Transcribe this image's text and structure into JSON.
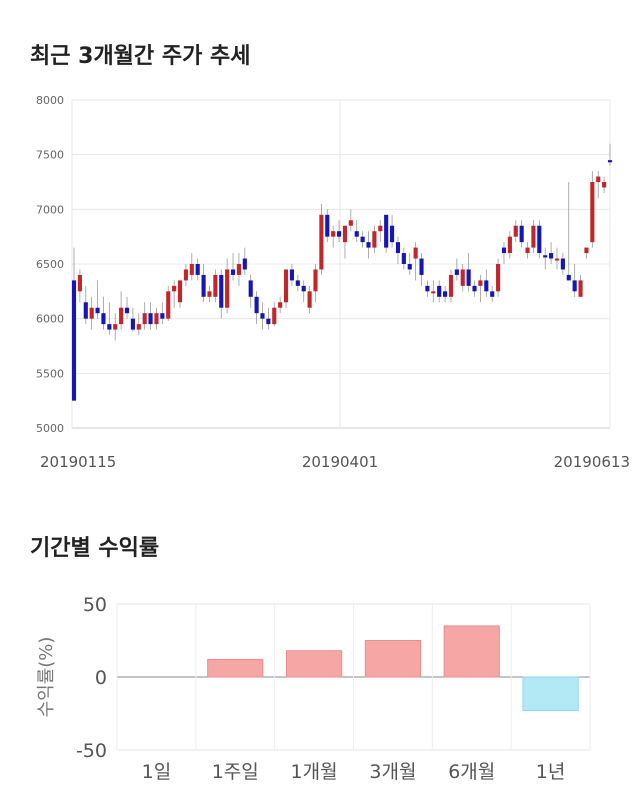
{
  "sections": {
    "price_title": "최근 3개월간 주가 추세",
    "returns_title": "기간별 수익률"
  },
  "colors": {
    "up": "#c0262a",
    "down": "#1616b4",
    "positive_bar": "#f7a6a6",
    "negative_bar": "#b3e9f5",
    "grid": "#e8e8e8"
  },
  "chart_data": [
    {
      "type": "candlestick",
      "title": "최근 3개월간 주가 추세",
      "ylim": [
        5000,
        8000
      ],
      "yticks": [
        5000,
        5500,
        6000,
        6500,
        7000,
        7500,
        8000
      ],
      "x_tick_labels": [
        "20190115",
        "20190401",
        "20190613"
      ],
      "grid": true,
      "series": [
        {
          "o": 6350,
          "h": 6650,
          "l": 5250,
          "c": 5250
        },
        {
          "o": 6250,
          "h": 6450,
          "l": 6150,
          "c": 6400
        },
        {
          "o": 6150,
          "h": 6300,
          "l": 5950,
          "c": 6000
        },
        {
          "o": 6000,
          "h": 6200,
          "l": 5900,
          "c": 6100
        },
        {
          "o": 6100,
          "h": 6350,
          "l": 6000,
          "c": 6050
        },
        {
          "o": 6050,
          "h": 6200,
          "l": 5900,
          "c": 5950
        },
        {
          "o": 5950,
          "h": 6150,
          "l": 5850,
          "c": 5900
        },
        {
          "o": 5900,
          "h": 6050,
          "l": 5800,
          "c": 5950
        },
        {
          "o": 5950,
          "h": 6250,
          "l": 5900,
          "c": 6100
        },
        {
          "o": 6100,
          "h": 6200,
          "l": 6000,
          "c": 6050
        },
        {
          "o": 6000,
          "h": 6100,
          "l": 5880,
          "c": 5900
        },
        {
          "o": 5900,
          "h": 6050,
          "l": 5850,
          "c": 5950
        },
        {
          "o": 5950,
          "h": 6150,
          "l": 5900,
          "c": 6050
        },
        {
          "o": 6050,
          "h": 6150,
          "l": 5900,
          "c": 5950
        },
        {
          "o": 5950,
          "h": 6100,
          "l": 5900,
          "c": 6050
        },
        {
          "o": 6050,
          "h": 6150,
          "l": 5950,
          "c": 6000
        },
        {
          "o": 6000,
          "h": 6300,
          "l": 5980,
          "c": 6250
        },
        {
          "o": 6250,
          "h": 6350,
          "l": 6100,
          "c": 6300
        },
        {
          "o": 6150,
          "h": 6350,
          "l": 6100,
          "c": 6350
        },
        {
          "o": 6350,
          "h": 6500,
          "l": 6300,
          "c": 6450
        },
        {
          "o": 6400,
          "h": 6600,
          "l": 6350,
          "c": 6500
        },
        {
          "o": 6500,
          "h": 6550,
          "l": 6350,
          "c": 6400
        },
        {
          "o": 6400,
          "h": 6500,
          "l": 6150,
          "c": 6200
        },
        {
          "o": 6200,
          "h": 6300,
          "l": 6150,
          "c": 6250
        },
        {
          "o": 6200,
          "h": 6450,
          "l": 6150,
          "c": 6400
        },
        {
          "o": 6400,
          "h": 6450,
          "l": 6000,
          "c": 6100
        },
        {
          "o": 6100,
          "h": 6550,
          "l": 6050,
          "c": 6450
        },
        {
          "o": 6450,
          "h": 6600,
          "l": 6350,
          "c": 6400
        },
        {
          "o": 6400,
          "h": 6600,
          "l": 6300,
          "c": 6500
        },
        {
          "o": 6550,
          "h": 6650,
          "l": 6400,
          "c": 6450
        },
        {
          "o": 6350,
          "h": 6400,
          "l": 6100,
          "c": 6200
        },
        {
          "o": 6200,
          "h": 6250,
          "l": 5950,
          "c": 6050
        },
        {
          "o": 6050,
          "h": 6150,
          "l": 5900,
          "c": 6000
        },
        {
          "o": 6000,
          "h": 6100,
          "l": 5900,
          "c": 5950
        },
        {
          "o": 5950,
          "h": 6150,
          "l": 5930,
          "c": 6100
        },
        {
          "o": 6100,
          "h": 6200,
          "l": 6050,
          "c": 6150
        },
        {
          "o": 6150,
          "h": 6450,
          "l": 6100,
          "c": 6450
        },
        {
          "o": 6450,
          "h": 6500,
          "l": 6300,
          "c": 6350
        },
        {
          "o": 6350,
          "h": 6400,
          "l": 6250,
          "c": 6300
        },
        {
          "o": 6300,
          "h": 6350,
          "l": 6150,
          "c": 6250
        },
        {
          "o": 6100,
          "h": 6300,
          "l": 6050,
          "c": 6250
        },
        {
          "o": 6250,
          "h": 6500,
          "l": 6150,
          "c": 6450
        },
        {
          "o": 6450,
          "h": 7050,
          "l": 6400,
          "c": 6950
        },
        {
          "o": 6950,
          "h": 7000,
          "l": 6700,
          "c": 6750
        },
        {
          "o": 6750,
          "h": 6850,
          "l": 6650,
          "c": 6800
        },
        {
          "o": 6800,
          "h": 6900,
          "l": 6700,
          "c": 6750
        },
        {
          "o": 6700,
          "h": 6850,
          "l": 6550,
          "c": 6850
        },
        {
          "o": 6850,
          "h": 7000,
          "l": 6800,
          "c": 6900
        },
        {
          "o": 6800,
          "h": 6900,
          "l": 6700,
          "c": 6750
        },
        {
          "o": 6750,
          "h": 6800,
          "l": 6650,
          "c": 6700
        },
        {
          "o": 6700,
          "h": 6800,
          "l": 6550,
          "c": 6650
        },
        {
          "o": 6650,
          "h": 6850,
          "l": 6600,
          "c": 6800
        },
        {
          "o": 6800,
          "h": 6900,
          "l": 6700,
          "c": 6850
        },
        {
          "o": 6950,
          "h": 6950,
          "l": 6600,
          "c": 6650
        },
        {
          "o": 6850,
          "h": 6950,
          "l": 6650,
          "c": 6700
        },
        {
          "o": 6700,
          "h": 6750,
          "l": 6500,
          "c": 6600
        },
        {
          "o": 6600,
          "h": 6650,
          "l": 6450,
          "c": 6500
        },
        {
          "o": 6500,
          "h": 6600,
          "l": 6400,
          "c": 6450
        },
        {
          "o": 6550,
          "h": 6700,
          "l": 6350,
          "c": 6650
        },
        {
          "o": 6550,
          "h": 6600,
          "l": 6300,
          "c": 6400
        },
        {
          "o": 6300,
          "h": 6350,
          "l": 6200,
          "c": 6250
        },
        {
          "o": 6250,
          "h": 6350,
          "l": 6150,
          "c": 6250
        },
        {
          "o": 6300,
          "h": 6350,
          "l": 6150,
          "c": 6200
        },
        {
          "o": 6250,
          "h": 6300,
          "l": 6150,
          "c": 6200
        },
        {
          "o": 6200,
          "h": 6450,
          "l": 6150,
          "c": 6400
        },
        {
          "o": 6450,
          "h": 6550,
          "l": 6350,
          "c": 6400
        },
        {
          "o": 6300,
          "h": 6500,
          "l": 6250,
          "c": 6450
        },
        {
          "o": 6450,
          "h": 6600,
          "l": 6250,
          "c": 6300
        },
        {
          "o": 6300,
          "h": 6350,
          "l": 6200,
          "c": 6250
        },
        {
          "o": 6300,
          "h": 6400,
          "l": 6150,
          "c": 6350
        },
        {
          "o": 6350,
          "h": 6450,
          "l": 6200,
          "c": 6250
        },
        {
          "o": 6250,
          "h": 6300,
          "l": 6150,
          "c": 6200
        },
        {
          "o": 6250,
          "h": 6550,
          "l": 6200,
          "c": 6500
        },
        {
          "o": 6650,
          "h": 6700,
          "l": 6500,
          "c": 6600
        },
        {
          "o": 6600,
          "h": 6800,
          "l": 6550,
          "c": 6750
        },
        {
          "o": 6750,
          "h": 6900,
          "l": 6700,
          "c": 6850
        },
        {
          "o": 6850,
          "h": 6900,
          "l": 6650,
          "c": 6700
        },
        {
          "o": 6600,
          "h": 6700,
          "l": 6550,
          "c": 6650
        },
        {
          "o": 6650,
          "h": 6900,
          "l": 6600,
          "c": 6850
        },
        {
          "o": 6850,
          "h": 6900,
          "l": 6550,
          "c": 6600
        },
        {
          "o": 6580,
          "h": 6650,
          "l": 6450,
          "c": 6560
        },
        {
          "o": 6600,
          "h": 6700,
          "l": 6500,
          "c": 6550
        },
        {
          "o": 6550,
          "h": 6650,
          "l": 6450,
          "c": 6550
        },
        {
          "o": 6550,
          "h": 6600,
          "l": 6400,
          "c": 6450
        },
        {
          "o": 6400,
          "h": 7250,
          "l": 6350,
          "c": 6350
        },
        {
          "o": 6350,
          "h": 6500,
          "l": 6200,
          "c": 6250
        },
        {
          "o": 6200,
          "h": 6400,
          "l": 6200,
          "c": 6350
        },
        {
          "o": 6600,
          "h": 6650,
          "l": 6550,
          "c": 6650
        },
        {
          "o": 6700,
          "h": 7350,
          "l": 6650,
          "c": 7250
        },
        {
          "o": 7250,
          "h": 7350,
          "l": 7100,
          "c": 7300
        },
        {
          "o": 7200,
          "h": 7300,
          "l": 7150,
          "c": 7250
        },
        {
          "o": 7450,
          "h": 7600,
          "l": 7400,
          "c": 7430
        }
      ]
    },
    {
      "type": "bar",
      "title": "기간별 수익률",
      "ylabel": "수익률(%)",
      "ylim": [
        -50,
        50
      ],
      "yticks": [
        50,
        0,
        -50
      ],
      "categories": [
        "1일",
        "1주일",
        "1개월",
        "3개월",
        "6개월",
        "1년"
      ],
      "values": [
        0,
        12,
        18,
        25,
        35,
        -23
      ]
    }
  ]
}
